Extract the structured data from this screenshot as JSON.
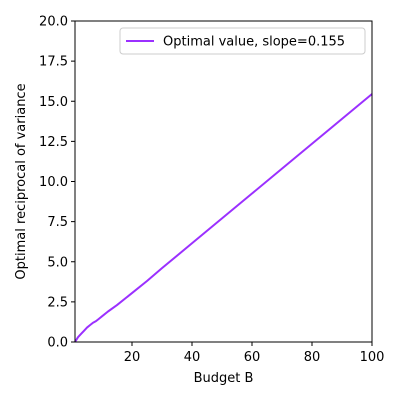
{
  "chart_data": {
    "type": "line",
    "title": "",
    "xlabel": "Budget B",
    "ylabel": "Optimal reciprocal of variance",
    "xlim": [
      1,
      100
    ],
    "ylim": [
      0,
      20
    ],
    "xticks": [
      20,
      40,
      60,
      80,
      100
    ],
    "xtick_labels": [
      "20",
      "40",
      "60",
      "80",
      "100"
    ],
    "yticks": [
      0,
      2.5,
      5,
      7.5,
      10,
      12.5,
      15,
      17.5,
      20
    ],
    "ytick_labels": [
      "0.0",
      "2.5",
      "5.0",
      "7.5",
      "10.0",
      "12.5",
      "15.0",
      "17.5",
      "20.0"
    ],
    "grid": false,
    "legend_position": "top-right",
    "series": [
      {
        "name": "Optimal value, slope=0.155",
        "color": "#9b30ff",
        "x": [
          1,
          2,
          3,
          4,
          5,
          6,
          7,
          8,
          9,
          10,
          12,
          15,
          20,
          25,
          30,
          40,
          50,
          60,
          70,
          80,
          90,
          100
        ],
        "y": [
          0.0,
          0.3,
          0.5,
          0.7,
          0.9,
          1.05,
          1.2,
          1.3,
          1.45,
          1.6,
          1.9,
          2.3,
          3.05,
          3.8,
          4.6,
          6.15,
          7.7,
          9.25,
          10.8,
          12.35,
          13.9,
          15.45
        ]
      }
    ]
  }
}
